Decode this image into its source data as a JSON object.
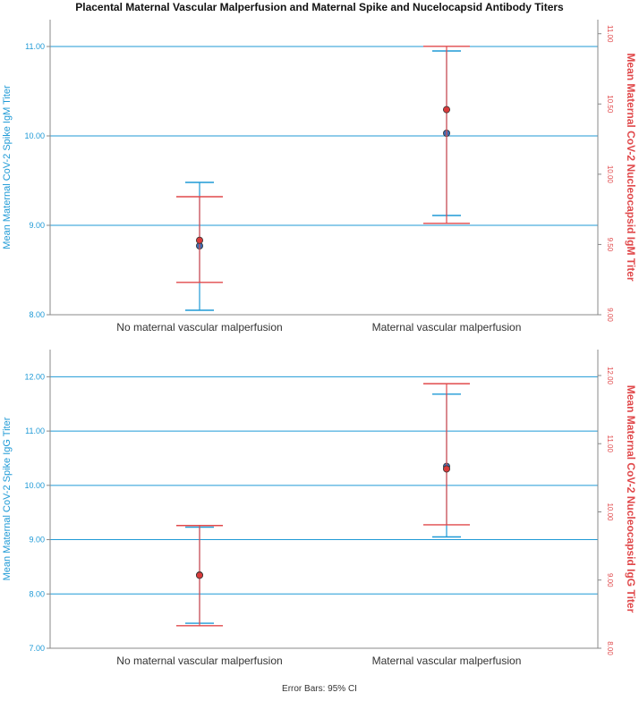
{
  "title": "Placental Maternal Vascular Malperfusion and Maternal Spike and Nucelocapsid Antibody Titers",
  "footer": "Error Bars: 95% CI",
  "colors": {
    "blue": "#1f9ad6",
    "red": "#e0494b",
    "blue_dot": "#3b6cb3",
    "red_dot": "#d93a3a",
    "axis": "#888888"
  },
  "chart_data": [
    {
      "type": "errorbar",
      "categories": [
        "No maternal vascular malperfusion",
        "Maternal vascular malperfusion"
      ],
      "left_axis": {
        "label": "Mean Maternal CoV-2 Spike IgM Titer",
        "ylim": [
          8.0,
          11.3
        ],
        "ticks": [
          "8.00",
          "9.00",
          "10.00",
          "11.00"
        ],
        "tick_values": [
          8,
          9,
          10,
          11
        ],
        "gridlines": [
          9,
          10,
          11
        ]
      },
      "right_axis": {
        "label": "Mean Maternal CoV-2 Nucleocapsid IgM Titer",
        "ylim": [
          9.0,
          11.1
        ],
        "ticks": [
          "9.00",
          "9.50",
          "10.00",
          "10.50",
          "11.00"
        ],
        "tick_values": [
          9.0,
          9.5,
          10.0,
          10.5,
          11.0
        ]
      },
      "series": [
        {
          "name": "Spike IgM",
          "axis": "left",
          "color": "#1f9ad6",
          "mean": [
            8.77,
            10.03
          ],
          "lower": [
            8.05,
            9.11
          ],
          "upper": [
            9.48,
            10.95
          ]
        },
        {
          "name": "Nucleocapsid IgM",
          "axis": "right",
          "color": "#e0494b",
          "mean": [
            9.53,
            10.46
          ],
          "lower": [
            9.23,
            9.65
          ],
          "upper": [
            9.84,
            10.91
          ]
        }
      ]
    },
    {
      "type": "errorbar",
      "categories": [
        "No maternal vascular malperfusion",
        "Maternal vascular malperfusion"
      ],
      "left_axis": {
        "label": "Mean Maternal CoV-2 Spike IgG Titer",
        "ylim": [
          7.0,
          12.5
        ],
        "ticks": [
          "7.00",
          "8.00",
          "9.00",
          "10.00",
          "11.00",
          "12.00"
        ],
        "tick_values": [
          7,
          8,
          9,
          10,
          11,
          12
        ],
        "gridlines": [
          8,
          9,
          10,
          11,
          12
        ]
      },
      "right_axis": {
        "label": "Mean Maternal CoV-2 Nucleocapsid IgG Titer",
        "ylim": [
          8.0,
          12.38
        ],
        "ticks": [
          "8.00",
          "9.00",
          "10.00",
          "11.00",
          "12.00"
        ],
        "tick_values": [
          8,
          9,
          10,
          11,
          12
        ]
      },
      "series": [
        {
          "name": "Spike IgG",
          "axis": "left",
          "color": "#1f9ad6",
          "mean": [
            8.35,
            10.35
          ],
          "lower": [
            7.46,
            9.05
          ],
          "upper": [
            9.23,
            11.68
          ]
        },
        {
          "name": "Nucleocapsid IgG",
          "axis": "right",
          "color": "#e0494b",
          "mean": [
            9.07,
            10.63
          ],
          "lower": [
            8.33,
            9.81
          ],
          "upper": [
            9.8,
            11.88
          ]
        }
      ]
    }
  ]
}
